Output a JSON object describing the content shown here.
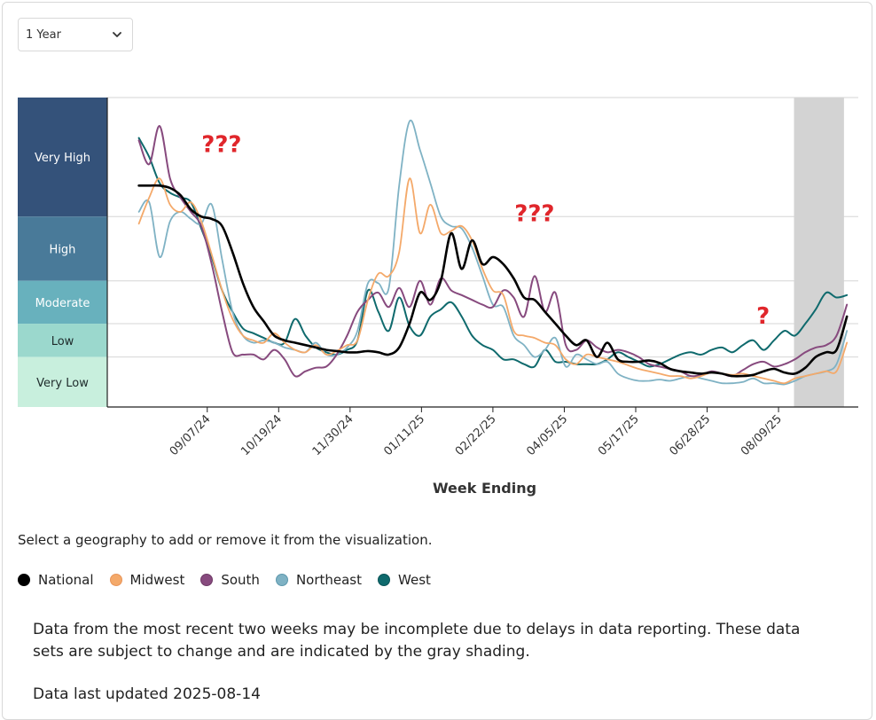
{
  "controls": {
    "range_select": {
      "value": "1 Year",
      "chevron": "⌄"
    }
  },
  "instructions": "Select a geography to add or remove it from the visualization.",
  "legend": [
    {
      "name": "National",
      "color": "#000000",
      "border": "#000000"
    },
    {
      "name": "Midwest",
      "color": "#f4a96a",
      "border": "#e8955a"
    },
    {
      "name": "South",
      "color": "#874a7e",
      "border": "#6e3a66"
    },
    {
      "name": "Northeast",
      "color": "#7fb2c4",
      "border": "#5e98ad"
    },
    {
      "name": "West",
      "color": "#0f6a6d",
      "border": "#0a5457"
    }
  ],
  "note": {
    "incomplete": "Data from the most recent two weeks may be incomplete due to delays in data reporting. These data sets are subject to change and are indicated by the gray shading.",
    "updated": "Data last updated 2025-08-14"
  },
  "chart_data": {
    "type": "line",
    "title": "",
    "xlabel": "Week Ending",
    "ylabel": "",
    "ylim": [
      0,
      13
    ],
    "grid": true,
    "x_ticks": [
      "09/07/24",
      "10/19/24",
      "11/30/24",
      "01/11/25",
      "02/22/25",
      "04/05/25",
      "05/17/25",
      "06/28/25",
      "08/09/25"
    ],
    "x_range_weeks": [
      -8.4,
      54.7
    ],
    "first_week_index": -5.75,
    "shaded_from_week": 49.3,
    "shaded_to_week": 53.5,
    "levels": [
      {
        "label": "Very High",
        "from": 8.0,
        "to": 13.0,
        "color": "#34527a"
      },
      {
        "label": "High",
        "from": 5.3,
        "to": 8.0,
        "color": "#497a99"
      },
      {
        "label": "Moderate",
        "from": 3.5,
        "to": 5.3,
        "color": "#68b1bd"
      },
      {
        "label": "Low",
        "from": 2.1,
        "to": 3.5,
        "color": "#9bd8cd"
      },
      {
        "label": "Very Low",
        "from": 0.0,
        "to": 2.1,
        "color": "#c8efdd"
      }
    ],
    "annotations": [
      {
        "text": "???",
        "week": 1.2,
        "value": 10.7
      },
      {
        "text": "???",
        "week": 27.5,
        "value": 7.8
      },
      {
        "text": "?",
        "week": 46.7,
        "value": 3.5
      }
    ],
    "series": [
      {
        "name": "National",
        "color": "#000000",
        "width": 2.6,
        "values": [
          9.3,
          9.3,
          9.3,
          9.2,
          8.9,
          8.3,
          8.0,
          7.9,
          7.6,
          6.5,
          5.2,
          4.2,
          3.6,
          3.0,
          2.8,
          2.7,
          2.6,
          2.5,
          2.4,
          2.35,
          2.3,
          2.3,
          2.35,
          2.3,
          2.2,
          2.5,
          3.5,
          4.8,
          4.5,
          5.3,
          7.3,
          5.8,
          7.0,
          6.0,
          6.3,
          6.0,
          5.4,
          4.6,
          4.5,
          4.0,
          3.5,
          3.0,
          2.6,
          2.8,
          2.1,
          2.7,
          2.0,
          1.9,
          1.9,
          1.95,
          1.85,
          1.6,
          1.5,
          1.45,
          1.4,
          1.45,
          1.4,
          1.3,
          1.3,
          1.35,
          1.5,
          1.6,
          1.45,
          1.4,
          1.65,
          2.1,
          2.3,
          2.4,
          3.8
        ]
      },
      {
        "name": "Midwest",
        "color": "#f4a96a",
        "width": 1.8,
        "values": [
          7.7,
          8.8,
          9.6,
          8.5,
          8.2,
          8.6,
          7.8,
          6.4,
          4.9,
          3.7,
          3.0,
          2.8,
          2.7,
          3.1,
          2.7,
          2.4,
          2.3,
          2.6,
          2.2,
          2.35,
          2.6,
          2.8,
          4.5,
          5.6,
          5.5,
          6.5,
          9.6,
          7.3,
          8.5,
          7.3,
          7.4,
          7.6,
          7.0,
          5.8,
          4.9,
          4.7,
          3.2,
          3.0,
          2.9,
          2.7,
          2.6,
          2.0,
          1.8,
          2.2,
          2.1,
          2.0,
          1.9,
          1.75,
          1.6,
          1.5,
          1.4,
          1.3,
          1.3,
          1.2,
          1.3,
          1.45,
          1.4,
          1.35,
          1.4,
          1.3,
          1.2,
          1.1,
          1.0,
          1.2,
          1.3,
          1.4,
          1.5,
          1.5,
          2.7
        ]
      },
      {
        "name": "South",
        "color": "#874a7e",
        "width": 2.0,
        "values": [
          11.2,
          10.2,
          11.8,
          9.6,
          8.8,
          8.2,
          7.6,
          6.0,
          4.0,
          2.3,
          2.2,
          2.2,
          2.0,
          2.4,
          2.0,
          1.3,
          1.5,
          1.65,
          1.7,
          2.2,
          3.0,
          4.0,
          4.5,
          4.8,
          4.2,
          5.0,
          4.2,
          5.3,
          4.3,
          5.4,
          4.9,
          4.7,
          4.5,
          4.3,
          4.2,
          4.9,
          4.6,
          3.8,
          5.5,
          4.0,
          4.8,
          2.6,
          2.4,
          2.8,
          2.5,
          2.3,
          2.4,
          2.3,
          2.1,
          1.8,
          1.7,
          1.6,
          1.5,
          1.3,
          1.35,
          1.5,
          1.4,
          1.3,
          1.55,
          1.8,
          1.9,
          1.7,
          1.8,
          2.0,
          2.3,
          2.5,
          2.6,
          3.0,
          4.3
        ]
      },
      {
        "name": "Northeast",
        "color": "#7fb2c4",
        "width": 1.8,
        "values": [
          8.2,
          8.6,
          6.3,
          7.8,
          8.2,
          7.9,
          7.7,
          8.5,
          6.2,
          4.0,
          3.0,
          2.7,
          2.8,
          2.7,
          2.5,
          2.4,
          2.3,
          2.7,
          2.2,
          2.2,
          2.5,
          3.2,
          5.2,
          5.2,
          5.0,
          9.3,
          12.0,
          10.8,
          9.4,
          8.0,
          7.6,
          7.5,
          6.7,
          5.5,
          4.3,
          4.2,
          3.0,
          2.6,
          2.1,
          2.4,
          2.9,
          1.7,
          2.2,
          2.0,
          1.8,
          1.9,
          1.4,
          1.2,
          1.1,
          1.1,
          1.15,
          1.1,
          1.2,
          1.3,
          1.2,
          1.1,
          1.0,
          1.0,
          1.05,
          1.2,
          1.0,
          1.0,
          0.95,
          1.1,
          1.3,
          1.4,
          1.5,
          1.8,
          3.2
        ]
      },
      {
        "name": "West",
        "color": "#0f6a6d",
        "width": 2.0,
        "values": [
          11.3,
          10.5,
          9.4,
          9.0,
          8.8,
          8.6,
          7.5,
          6.3,
          4.9,
          4.0,
          3.3,
          3.1,
          2.9,
          2.7,
          2.7,
          3.7,
          3.0,
          2.5,
          2.3,
          2.2,
          2.4,
          2.8,
          4.9,
          4.0,
          3.2,
          4.6,
          3.4,
          3.0,
          3.8,
          4.1,
          4.4,
          3.8,
          3.0,
          2.6,
          2.4,
          2.0,
          2.0,
          1.8,
          1.7,
          2.4,
          1.9,
          1.9,
          1.8,
          1.8,
          1.8,
          2.0,
          2.3,
          2.1,
          1.9,
          1.7,
          1.8,
          2.0,
          2.2,
          2.3,
          2.2,
          2.4,
          2.5,
          2.3,
          2.6,
          2.8,
          2.4,
          2.8,
          3.2,
          3.0,
          3.5,
          4.1,
          4.8,
          4.6,
          4.7
        ]
      }
    ]
  }
}
